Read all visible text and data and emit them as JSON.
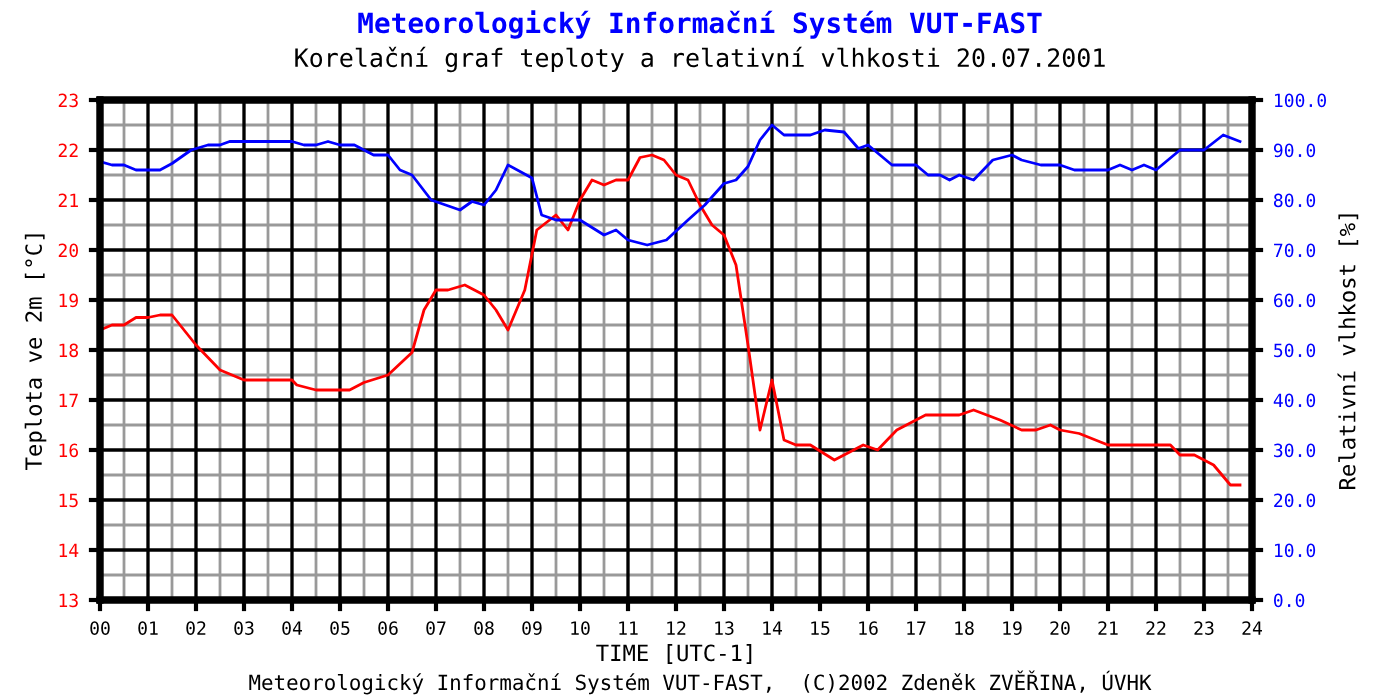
{
  "chart_data": {
    "type": "line",
    "title": "Meteorologický Informační Systém VUT-FAST",
    "subtitle": "Korelační graf teploty a relativní vlhkosti 20.07.2001",
    "xlabel": "TIME [UTC-1]",
    "ylabel": "Teplota ve 2m [°C]",
    "y2label": "Relativní vlhkost [%]",
    "annotations": [
      "Meteorologický Informační Systém VUT-FAST,  (C)2002 Zdeněk ZVĚŘINA, ÚVHK"
    ],
    "xlim": [
      0,
      24
    ],
    "xticks": [
      {
        "value": 0,
        "label": "00"
      },
      {
        "value": 1,
        "label": "01"
      },
      {
        "value": 2,
        "label": "02"
      },
      {
        "value": 3,
        "label": "03"
      },
      {
        "value": 4,
        "label": "04"
      },
      {
        "value": 5,
        "label": "05"
      },
      {
        "value": 6,
        "label": "06"
      },
      {
        "value": 7,
        "label": "07"
      },
      {
        "value": 8,
        "label": "08"
      },
      {
        "value": 9,
        "label": "09"
      },
      {
        "value": 10,
        "label": "10"
      },
      {
        "value": 11,
        "label": "11"
      },
      {
        "value": 12,
        "label": "12"
      },
      {
        "value": 13,
        "label": "13"
      },
      {
        "value": 14,
        "label": "14"
      },
      {
        "value": 15,
        "label": "15"
      },
      {
        "value": 16,
        "label": "16"
      },
      {
        "value": 17,
        "label": "17"
      },
      {
        "value": 18,
        "label": "18"
      },
      {
        "value": 19,
        "label": "19"
      },
      {
        "value": 20,
        "label": "20"
      },
      {
        "value": 21,
        "label": "21"
      },
      {
        "value": 22,
        "label": "22"
      },
      {
        "value": 23,
        "label": "23"
      },
      {
        "value": 24,
        "label": "24"
      }
    ],
    "ylim": [
      13,
      23
    ],
    "yticks": [
      13,
      14,
      15,
      16,
      17,
      18,
      19,
      20,
      21,
      22,
      23
    ],
    "y2lim": [
      0,
      100
    ],
    "y2ticks": [
      {
        "value": 0,
        "label": "0.0"
      },
      {
        "value": 10,
        "label": "10.0"
      },
      {
        "value": 20,
        "label": "20.0"
      },
      {
        "value": 30,
        "label": "30.0"
      },
      {
        "value": 40,
        "label": "40.0"
      },
      {
        "value": 50,
        "label": "50.0"
      },
      {
        "value": 60,
        "label": "60.0"
      },
      {
        "value": 70,
        "label": "70.0"
      },
      {
        "value": 80,
        "label": "80.0"
      },
      {
        "value": 90,
        "label": "90.0"
      },
      {
        "value": 100,
        "label": "100.0"
      }
    ],
    "grid": true,
    "marker": "none",
    "line_style": "solid",
    "series": [
      {
        "color": "#ff0000",
        "x": [
          0,
          0.25,
          0.5,
          0.75,
          1,
          1.25,
          1.5,
          2,
          2.5,
          3,
          4,
          4.1,
          4.5,
          5.2,
          5.5,
          6,
          6.5,
          6.75,
          7,
          7.25,
          7.6,
          8,
          8.25,
          8.5,
          8.85,
          9.1,
          9.5,
          9.75,
          10,
          10.25,
          10.5,
          10.75,
          11,
          11.25,
          11.5,
          11.75,
          12,
          12.25,
          12.5,
          12.75,
          13,
          13.25,
          13.5,
          13.75,
          14,
          14.25,
          14.5,
          14.8,
          15.3,
          15.5,
          15.9,
          16.2,
          16.6,
          17.2,
          17.9,
          18.2,
          18.75,
          19.2,
          19.5,
          19.8,
          20,
          20.4,
          21,
          22.3,
          22.5,
          22.8,
          23.2,
          23.55,
          23.75
        ],
        "values": [
          18.4,
          18.5,
          18.5,
          18.65,
          18.65,
          18.7,
          18.7,
          18.1,
          17.6,
          17.4,
          17.4,
          17.3,
          17.2,
          17.2,
          17.35,
          17.5,
          17.95,
          18.8,
          19.2,
          19.2,
          19.3,
          19.1,
          18.8,
          18.4,
          19.2,
          20.4,
          20.7,
          20.4,
          21.0,
          21.4,
          21.3,
          21.4,
          21.4,
          21.85,
          21.9,
          21.8,
          21.5,
          21.4,
          20.9,
          20.5,
          20.3,
          19.7,
          18.1,
          16.4,
          17.4,
          16.2,
          16.1,
          16.1,
          15.8,
          15.9,
          16.1,
          16.0,
          16.4,
          16.7,
          16.7,
          16.8,
          16.6,
          16.4,
          16.4,
          16.5,
          16.4,
          16.33,
          16.1,
          16.1,
          15.9,
          15.9,
          15.7,
          15.3,
          15.3
        ]
      },
      {
        "color": "#0000ff",
        "axis": "y2",
        "x": [
          0,
          0.25,
          0.5,
          0.75,
          1.25,
          1.5,
          1.9,
          2.25,
          2.5,
          2.7,
          4,
          4.25,
          4.5,
          4.75,
          5,
          5.3,
          5.7,
          6,
          6.25,
          6.5,
          6.9,
          7.2,
          7.5,
          7.75,
          8,
          8.25,
          8.5,
          9,
          9.2,
          9.5,
          10,
          10.5,
          10.75,
          11,
          11.4,
          11.8,
          12.25,
          12.6,
          13,
          13.25,
          13.5,
          13.75,
          14,
          14.25,
          14.8,
          15.1,
          15.5,
          15.8,
          16,
          16.5,
          17,
          17.25,
          17.5,
          17.7,
          17.9,
          18.2,
          18.6,
          19,
          19.2,
          19.6,
          20,
          20.3,
          21,
          21.25,
          21.5,
          21.75,
          22,
          22.5,
          23,
          23.4,
          23.75
        ],
        "values": [
          87.7,
          87,
          87,
          86,
          86,
          87.3,
          90,
          91,
          91,
          91.7,
          91.7,
          91,
          91,
          91.7,
          91,
          91,
          89,
          89,
          86,
          85,
          80,
          79,
          78,
          79.7,
          79,
          82,
          87,
          84.4,
          77,
          76,
          76,
          73,
          74,
          72,
          71,
          72,
          76,
          79,
          83.3,
          84,
          86.7,
          92,
          95,
          93,
          93,
          94,
          93.6,
          90.3,
          91,
          87,
          87,
          85,
          85,
          84,
          85,
          84,
          88,
          89,
          88,
          87,
          87,
          86,
          86,
          87,
          86,
          87,
          86,
          90,
          90,
          93,
          91.7
        ]
      }
    ]
  }
}
